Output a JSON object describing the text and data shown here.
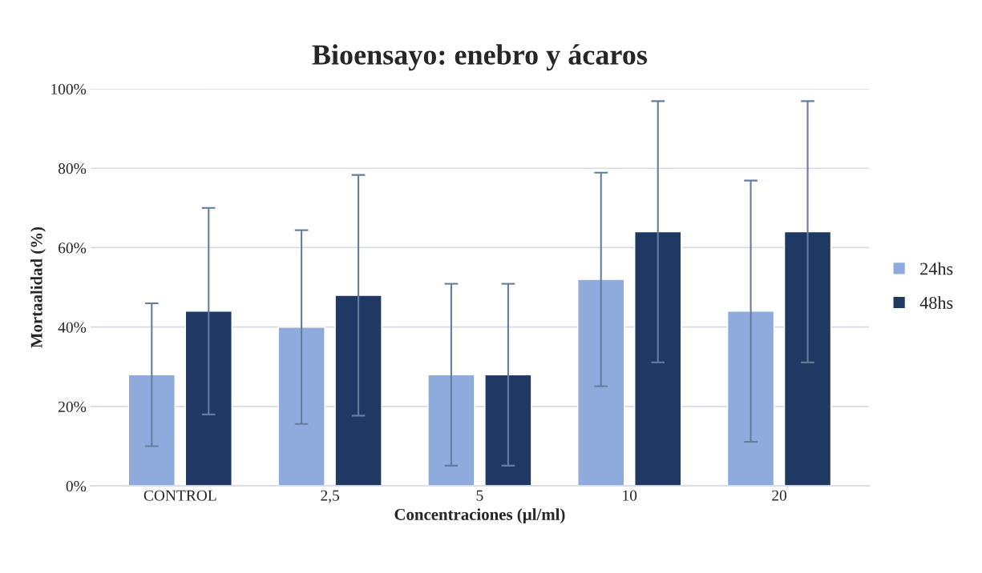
{
  "chart_data": {
    "type": "bar",
    "title": "Bioensayo: enebro y ácaros",
    "xlabel": "Concentraciones (µl/ml)",
    "ylabel": "Mortaalidad (%)",
    "categories": [
      "CONTROL",
      "2,5",
      "5",
      "10",
      "20"
    ],
    "series": [
      {
        "name": "24hs",
        "color": "#8faadc",
        "values": [
          28,
          40,
          28,
          52,
          44
        ],
        "errors": [
          18,
          24.4,
          22.9,
          26.9,
          32.9
        ]
      },
      {
        "name": "48hs",
        "color": "#203864",
        "values": [
          44,
          48,
          28,
          64,
          64
        ],
        "errors": [
          26,
          30.3,
          22.9,
          32.9,
          32.9
        ]
      }
    ],
    "ylim": [
      0,
      100
    ],
    "yticks": [
      {
        "value": 0,
        "label": "0%"
      },
      {
        "value": 20,
        "label": "20%"
      },
      {
        "value": 40,
        "label": "40%"
      },
      {
        "value": 60,
        "label": "60%"
      },
      {
        "value": 80,
        "label": "80%"
      },
      {
        "value": 100,
        "label": "100%"
      }
    ],
    "grid": "y",
    "legend": "right"
  }
}
